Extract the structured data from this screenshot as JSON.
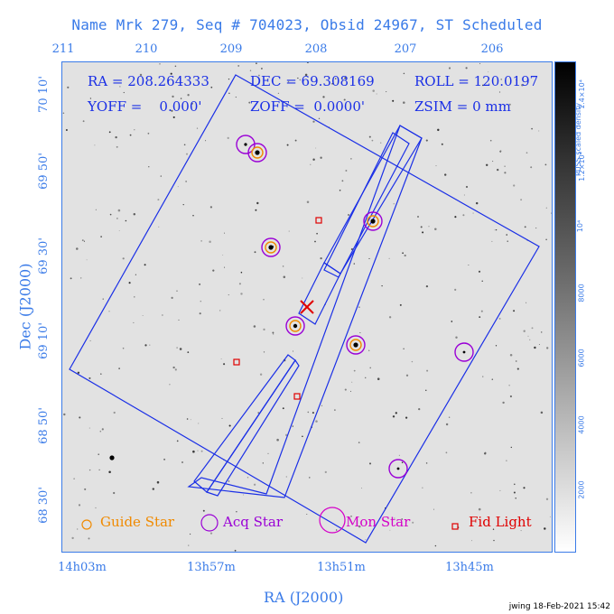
{
  "title": "Name Mrk 279, Seq # 704023, Obsid 24967, ST Scheduled",
  "top_ticks": [
    "211",
    "210",
    "209",
    "208",
    "207",
    "206"
  ],
  "bottom_ticks": [
    "14h03m",
    "13h57m",
    "13h51m",
    "13h45m"
  ],
  "left_ticks": [
    "70 10'",
    "69 50'",
    "69 30'",
    "69 10'",
    "68 50'",
    "68 30'"
  ],
  "xlabel": "RA (J2000)",
  "ylabel": "Dec (J2000)",
  "colorbar": {
    "label": "PUSS scaled density",
    "ticks": [
      "1.4×10⁴",
      "1.2×10⁴",
      "10⁴",
      "8000",
      "6000",
      "4000",
      "2000"
    ]
  },
  "info": {
    "ra": "RA = 208.264333",
    "dec": "DEC = 69.308169",
    "roll": "ROLL = 120.0197",
    "yoff": "YOFF =    0.000'",
    "zoff": "ZOFF =  0.0000'",
    "zsim": "ZSIM = 0 mm"
  },
  "legend": {
    "guide": "Guide Star",
    "acq": "Acq Star",
    "mon": "Mon Star",
    "fid": "Fid Light"
  },
  "colors": {
    "axis": "#3a7be8",
    "box": "#1a2fe6",
    "guide": "#f08a00",
    "acq": "#9a00d6",
    "mon": "#d400c8",
    "fid": "#e00000",
    "target": "#e00000"
  },
  "footer": "jwing 18-Feb-2021 15:42"
}
